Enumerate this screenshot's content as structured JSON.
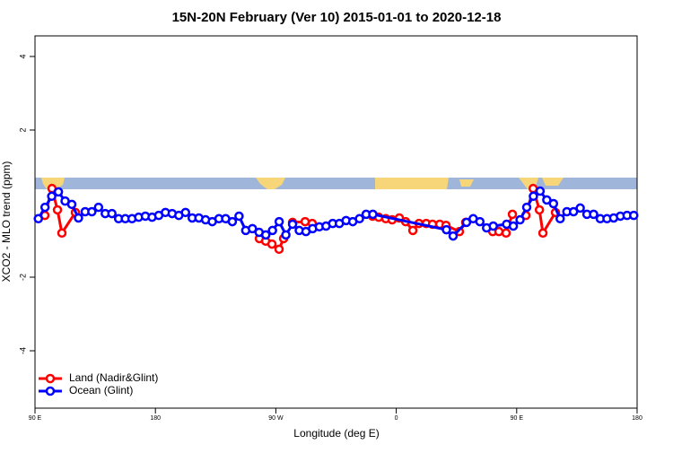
{
  "chart_data": {
    "type": "line",
    "title": "15N-20N February (Ver 10)   2015-01-01 to 2020-12-18",
    "x_label": "Longitude (deg E)",
    "y_label": "XCO2 - MLO trend (ppm)",
    "xlim": [
      90,
      540
    ],
    "ylim": [
      -5.56,
      4.56
    ],
    "xticks": [
      {
        "value": 90,
        "label": "90 E"
      },
      180,
      {
        "value": 270,
        "label": "90 W"
      },
      {
        "value": 360,
        "label": "0"
      },
      {
        "value": 450,
        "label": "90 E"
      },
      {
        "value": 540,
        "label": "180"
      }
    ],
    "yticks": [
      -4,
      -2,
      2,
      4
    ],
    "legend": "bottom-left",
    "series": [
      {
        "name": "Land (Nadir&Glint)",
        "color": "#ff0000",
        "x": [
          97.4,
          102.7,
          106.8,
          110.1,
          120.2,
          null,
          257.7,
          262.4,
          267.1,
          272.4,
          275.8,
          null,
          282.5,
          291.9,
          297.2,
          null,
          342.2,
          346.9,
          352.2,
          356.9,
          362.3,
          367,
          372.4,
          377,
          382.4,
          387.1,
          392.5,
          397.2,
          407.2,
          411.9,
          null,
          432.1,
          436.7,
          442.1,
          446.8,
          null,
          456.9,
          462.3,
          467,
          469.6,
          479
        ],
        "values": [
          -0.32,
          0.41,
          -0.17,
          -0.8,
          -0.24,
          null,
          -0.95,
          -1.02,
          -1.1,
          -1.24,
          -0.95,
          null,
          -0.51,
          -0.49,
          -0.54,
          null,
          -0.34,
          -0.37,
          -0.41,
          -0.44,
          -0.39,
          -0.49,
          -0.73,
          -0.54,
          -0.54,
          -0.56,
          -0.56,
          -0.59,
          -0.76,
          -0.51,
          null,
          -0.76,
          -0.76,
          -0.8,
          -0.29,
          null,
          -0.32,
          0.41,
          -0.17,
          -0.8,
          -0.24
        ]
      },
      {
        "name": "Ocean (Glint)",
        "color": "#0000ff",
        "x": [
          92.5,
          97.5,
          102.5,
          107.5,
          112.5,
          117.5,
          122.5,
          127.5,
          132.5,
          137.5,
          142.5,
          147.5,
          152.5,
          157.5,
          162.5,
          167.5,
          172.5,
          177.5,
          182.5,
          187.5,
          192.5,
          197.5,
          202.5,
          207.5,
          212.5,
          217.5,
          222.5,
          227.5,
          232.5,
          237.5,
          242.5,
          247.5,
          252.5,
          257.5,
          262.5,
          267.5,
          272.5,
          277.5,
          282.5,
          287.5,
          292.5,
          297.5,
          302.5,
          307.5,
          312.5,
          317.5,
          322.5,
          327.5,
          332.5,
          337.5,
          342.5,
          397.5,
          402.5,
          412.5,
          417.5,
          422.5,
          427.5,
          432.5,
          442.5,
          447.5,
          452.5,
          457.5,
          462.5,
          467.5,
          472.5,
          477.5,
          482.5,
          487.5,
          492.5,
          497.5,
          502.5,
          507.5,
          512.5,
          517.5,
          522.5,
          527.5,
          532.5,
          537.5
        ],
        "values": [
          -0.41,
          -0.1,
          0.2,
          0.32,
          0.07,
          -0.02,
          -0.39,
          -0.22,
          -0.22,
          -0.1,
          -0.27,
          -0.27,
          -0.41,
          -0.41,
          -0.41,
          -0.37,
          -0.34,
          -0.37,
          -0.32,
          -0.24,
          -0.27,
          -0.32,
          -0.24,
          -0.39,
          -0.39,
          -0.44,
          -0.49,
          -0.41,
          -0.41,
          -0.49,
          -0.34,
          -0.73,
          -0.68,
          -0.78,
          -0.85,
          -0.73,
          -0.49,
          -0.85,
          -0.56,
          -0.73,
          -0.76,
          -0.68,
          -0.63,
          -0.61,
          -0.54,
          -0.54,
          -0.46,
          -0.49,
          -0.41,
          -0.29,
          -0.29,
          -0.71,
          -0.88,
          -0.51,
          -0.41,
          -0.49,
          -0.66,
          -0.61,
          -0.56,
          -0.61,
          -0.44,
          -0.1,
          0.2,
          0.34,
          0.1,
          0.0,
          -0.41,
          -0.22,
          -0.22,
          -0.12,
          -0.29,
          -0.29,
          -0.41,
          -0.41,
          -0.39,
          -0.34,
          -0.32,
          -0.32
        ]
      }
    ]
  }
}
